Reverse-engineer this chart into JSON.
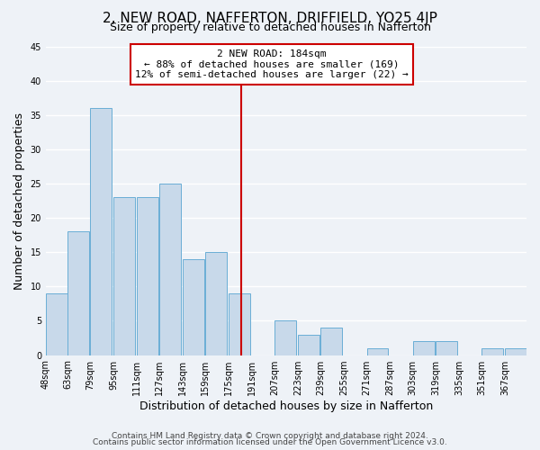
{
  "title": "2, NEW ROAD, NAFFERTON, DRIFFIELD, YO25 4JP",
  "subtitle": "Size of property relative to detached houses in Nafferton",
  "xlabel": "Distribution of detached houses by size in Nafferton",
  "ylabel": "Number of detached properties",
  "bin_labels": [
    "48sqm",
    "63sqm",
    "79sqm",
    "95sqm",
    "111sqm",
    "127sqm",
    "143sqm",
    "159sqm",
    "175sqm",
    "191sqm",
    "207sqm",
    "223sqm",
    "239sqm",
    "255sqm",
    "271sqm",
    "287sqm",
    "303sqm",
    "319sqm",
    "335sqm",
    "351sqm",
    "367sqm"
  ],
  "bin_edges": [
    48,
    63,
    79,
    95,
    111,
    127,
    143,
    159,
    175,
    191,
    207,
    223,
    239,
    255,
    271,
    287,
    303,
    319,
    335,
    351,
    367
  ],
  "bar_heights": [
    9,
    18,
    36,
    23,
    23,
    25,
    14,
    15,
    9,
    0,
    5,
    3,
    4,
    0,
    1,
    0,
    2,
    2,
    0,
    1,
    1
  ],
  "bar_color": "#c8d9ea",
  "bar_edge_color": "#6aaed6",
  "reference_line_x": 184,
  "reference_line_color": "#cc0000",
  "annotation_title": "2 NEW ROAD: 184sqm",
  "annotation_line1": "← 88% of detached houses are smaller (169)",
  "annotation_line2": "12% of semi-detached houses are larger (22) →",
  "annotation_box_color": "#cc0000",
  "ylim": [
    0,
    45
  ],
  "yticks": [
    0,
    5,
    10,
    15,
    20,
    25,
    30,
    35,
    40,
    45
  ],
  "footer_line1": "Contains HM Land Registry data © Crown copyright and database right 2024.",
  "footer_line2": "Contains public sector information licensed under the Open Government Licence v3.0.",
  "background_color": "#eef2f7",
  "grid_color": "#ffffff",
  "title_fontsize": 11,
  "subtitle_fontsize": 9,
  "axis_label_fontsize": 9,
  "tick_fontsize": 7,
  "annotation_fontsize": 8,
  "footer_fontsize": 6.5
}
